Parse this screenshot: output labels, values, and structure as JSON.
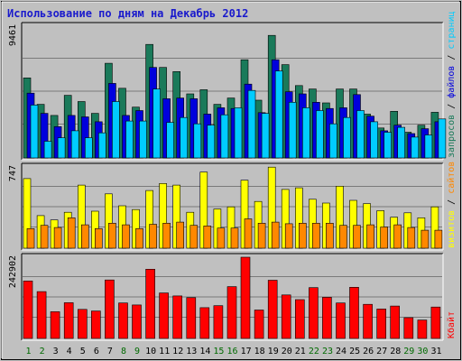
{
  "chart_data": {
    "type": "bar",
    "title": "Использование по дням на Декабрь 2012",
    "categories": [
      "1",
      "2",
      "3",
      "4",
      "5",
      "6",
      "7",
      "8",
      "9",
      "10",
      "11",
      "12",
      "13",
      "14",
      "15",
      "16",
      "17",
      "18",
      "19",
      "20",
      "21",
      "22",
      "23",
      "24",
      "25",
      "26",
      "27",
      "28",
      "29",
      "30",
      "31"
    ],
    "weekend_days": [
      1,
      2,
      8,
      9,
      15,
      16,
      22,
      23,
      29,
      30
    ],
    "colors": {
      "background": "#c0c0c0",
      "title": "#1a1acc",
      "weekday": "#000000",
      "weekend": "#006a00",
      "requests": "#1a7a5a",
      "files": "#0000dd",
      "pages": "#00ccff",
      "sites": "#ff8800",
      "visits": "#ffff00",
      "kbytes": "#ff0000"
    },
    "panels": [
      {
        "id": "hits",
        "ymax_label": "9461",
        "ylim": [
          0,
          9461
        ],
        "right_label_parts": [
          {
            "text": "запросов",
            "color": "requests"
          },
          {
            "text": " / ",
            "color": "weekday"
          },
          {
            "text": "файлов",
            "color": "files"
          },
          {
            "text": " / ",
            "color": "weekday"
          },
          {
            "text": "страниц",
            "color": "pages"
          }
        ],
        "series": [
          {
            "name": "запросов",
            "color_key": "requests",
            "values": [
              5750,
              3850,
              3050,
              4500,
              4050,
              3200,
              6800,
              5000,
              3650,
              8150,
              6500,
              6200,
              4600,
              4900,
              3850,
              4300,
              7050,
              4150,
              8800,
              6700,
              5200,
              4950,
              3950,
              4950,
              4950,
              3150,
              2150,
              3350,
              1850,
              2350,
              3280
            ]
          },
          {
            "name": "файлов",
            "color_key": "files",
            "values": [
              4650,
              3200,
              2250,
              3050,
              2950,
              2600,
              5350,
              3050,
              3400,
              6500,
              4250,
              4300,
              4250,
              3150,
              3600,
              3550,
              5300,
              3250,
              7050,
              4750,
              4600,
              4000,
              3550,
              3600,
              4550,
              3000,
              1950,
              2350,
              1750,
              2100,
              2600
            ]
          },
          {
            "name": "страниц",
            "color_key": "pages",
            "values": [
              3800,
              1200,
              1450,
              1950,
              1450,
              1800,
              4050,
              2650,
              2650,
              4950,
              2550,
              2900,
              2450,
              2350,
              3100,
              3600,
              4850,
              3200,
              6250,
              4000,
              3600,
              3400,
              2450,
              2900,
              3400,
              2600,
              1850,
              2200,
              1500,
              1650,
              2800
            ]
          }
        ]
      },
      {
        "id": "visits",
        "ymax_label": "747",
        "ylim": [
          0,
          747
        ],
        "right_label_parts": [
          {
            "text": "визитов",
            "color": "visits"
          },
          {
            "text": " / ",
            "color": "weekday"
          },
          {
            "text": "сайтов",
            "color": "sites"
          }
        ],
        "series": [
          {
            "name": "визитов",
            "color_key": "visits",
            "values": [
              640,
              300,
              260,
              330,
              580,
              340,
              500,
              390,
              355,
              530,
              595,
              580,
              330,
              700,
              360,
              380,
              625,
              430,
              745,
              540,
              555,
              450,
              415,
              570,
              440,
              410,
              345,
              285,
              325,
              280,
              380
            ]
          },
          {
            "name": "сайтов",
            "color_key": "sites",
            "values": [
              180,
              210,
              190,
              280,
              215,
              180,
              230,
              215,
              180,
              220,
              230,
              240,
              210,
              205,
              185,
              185,
              270,
              230,
              240,
              225,
              230,
              230,
              230,
              210,
              210,
              215,
              195,
              215,
              190,
              165,
              165
            ]
          }
        ]
      },
      {
        "id": "kbytes",
        "ymax_label": "242902",
        "ylim": [
          0,
          242902
        ],
        "right_label_parts": [
          {
            "text": "Кбайт",
            "color": "kbytes"
          }
        ],
        "series": [
          {
            "name": "Кбайт",
            "color_key": "kbytes",
            "values": [
              172000,
              140000,
              80000,
              107000,
              87000,
              82000,
              175000,
              106000,
              100000,
              207000,
              136000,
              127000,
              122000,
              92000,
              98000,
              155000,
              242902,
              85000,
              174000,
              130000,
              116000,
              152000,
              123000,
              106000,
              153000,
              102000,
              88000,
              97000,
              62000,
              55000,
              94000
            ]
          }
        ]
      }
    ]
  }
}
